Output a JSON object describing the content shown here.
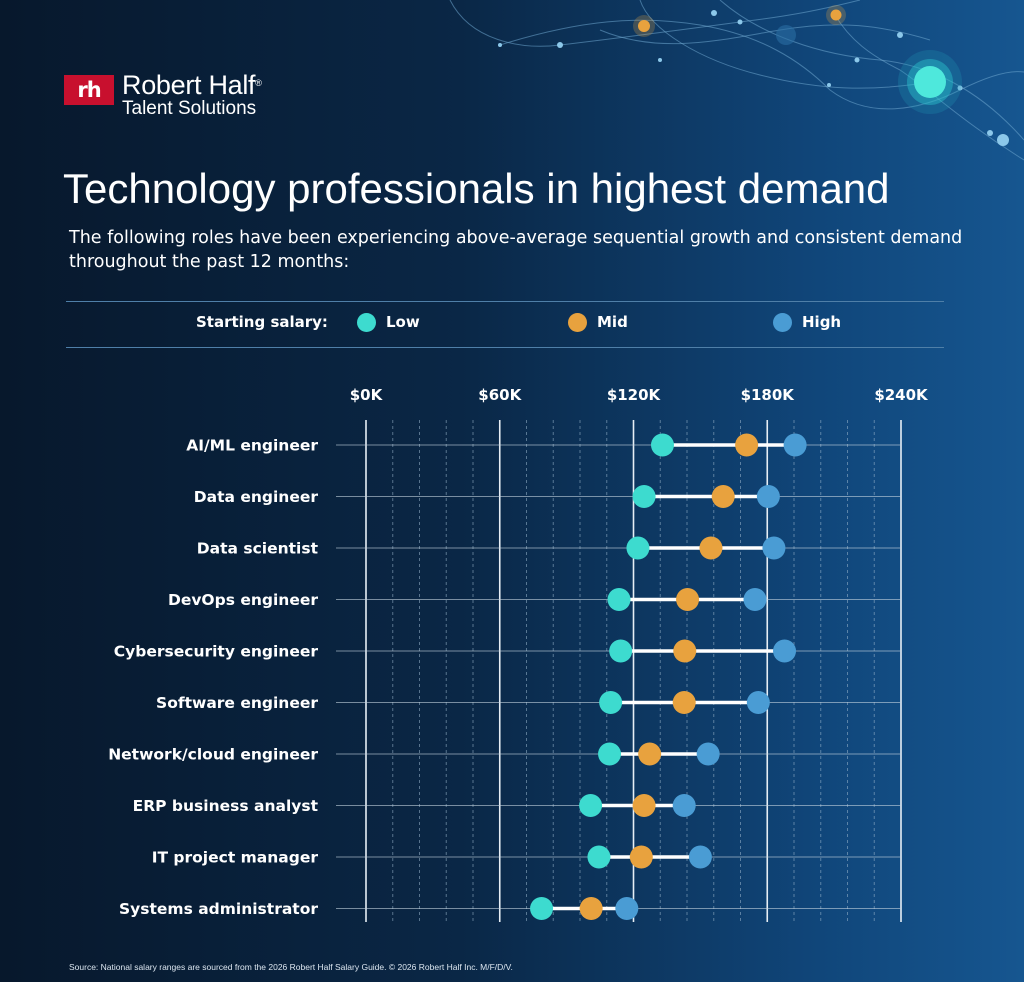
{
  "brand": {
    "mark": "rh",
    "name": "Robert Half",
    "registered": "®",
    "division": "Talent Solutions"
  },
  "title": "Technology professionals in highest demand",
  "subtitle": "The following roles have been experiencing above-average sequential growth and consistent demand throughout the past 12 months:",
  "legend": {
    "title": "Starting salary:",
    "items": [
      {
        "label": "Low",
        "color": "#3ddbcf"
      },
      {
        "label": "Mid",
        "color": "#e8a23e"
      },
      {
        "label": "High",
        "color": "#4a9cd4"
      }
    ]
  },
  "footer": "Source: National salary ranges are sourced from the 2026 Robert Half Salary Guide. © 2026 Robert Half Inc. M/F/D/V.",
  "colors": {
    "low": "#3ddbcf",
    "mid": "#e8a23e",
    "high": "#4a9cd4",
    "connector": "#ffffff",
    "brand_red": "#c8102e"
  },
  "chart_data": {
    "type": "dot-range",
    "xlim": [
      0,
      240000
    ],
    "x_ticks": [
      0,
      60000,
      120000,
      180000,
      240000
    ],
    "x_tick_labels": [
      "$0K",
      "$60K",
      "$120K",
      "$180K",
      "$240K"
    ],
    "minor_tick_step": 12000,
    "grid": true,
    "categories": [
      "AI/ML engineer",
      "Data engineer",
      "Data scientist",
      "DevOps engineer",
      "Cybersecurity engineer",
      "Software engineer",
      "Network/cloud engineer",
      "ERP business analyst",
      "IT project manager",
      "Systems administrator"
    ],
    "series": [
      {
        "name": "Low",
        "values": [
          133000,
          124750,
          122000,
          113500,
          114250,
          109750,
          109250,
          100750,
          104500,
          78750
        ]
      },
      {
        "name": "Mid",
        "values": [
          170750,
          160250,
          154750,
          144250,
          143000,
          142750,
          127250,
          124750,
          123500,
          101000
        ]
      },
      {
        "name": "High",
        "values": [
          192500,
          180500,
          183000,
          174500,
          187750,
          176000,
          153500,
          142750,
          150000,
          117000
        ]
      }
    ]
  }
}
